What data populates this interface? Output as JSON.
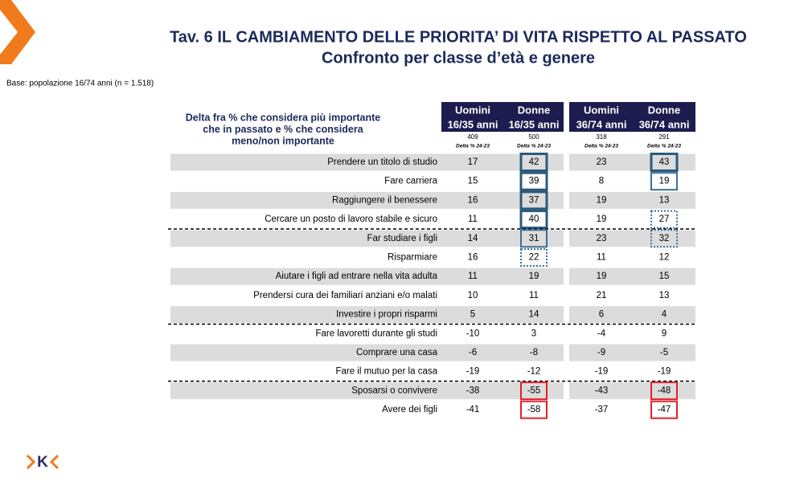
{
  "header": {
    "title": "Tav. 6 IL CAMBIAMENTO DELLE PRIORITA’ DI VITA RISPETTO AL PASSATO",
    "subtitle": "Confronto per classe d’età e genere",
    "base": "Base: popolazione 16/74 anni (n = 1.518)"
  },
  "logo_text": "K",
  "table": {
    "corner_lines": [
      "Delta fra % che considera più importante",
      "che in passato  e % che considera",
      "meno/non importante"
    ],
    "columns": [
      {
        "name": "Uomini",
        "age": "16/35 anni",
        "n": "409",
        "note": "Delta % 24-23"
      },
      {
        "name": "Donne",
        "age": "16/35 anni",
        "n": "500",
        "note": "Delta % 24-23"
      },
      {
        "name": "Uomini",
        "age": "36/74 anni",
        "n": "318",
        "note": "Delta % 24-23"
      },
      {
        "name": "Donne",
        "age": "36/74 anni",
        "n": "291",
        "note": "Delta % 24-23"
      }
    ],
    "header_color": "#1c1c4f",
    "band_color": "#dcdcdc",
    "groups": [
      {
        "rows": [
          {
            "label": "Prendere un titolo di studio",
            "values": [
              17,
              42,
              23,
              43
            ],
            "boxes": [
              null,
              "3px solid #2c5a7c",
              null,
              "3px solid #2c5a7c"
            ]
          },
          {
            "label": "Fare carriera",
            "values": [
              15,
              39,
              8,
              19
            ],
            "boxes": [
              null,
              "3px solid #2c5a7c",
              null,
              "2px solid #3c6f95"
            ]
          },
          {
            "label": "Raggiungere il benessere",
            "values": [
              16,
              37,
              19,
              13
            ],
            "boxes": [
              null,
              "3px solid #2c5a7c",
              null,
              null
            ]
          },
          {
            "label": "Cercare un posto di lavoro stabile e sicuro",
            "values": [
              11,
              40,
              19,
              27
            ],
            "boxes": [
              null,
              "3px solid #2c5a7c",
              null,
              "2px dotted #3c6f95"
            ]
          }
        ]
      },
      {
        "rows": [
          {
            "label": "Far studiare i figli",
            "values": [
              14,
              31,
              23,
              32
            ],
            "boxes": [
              null,
              "2px solid #3c6f95",
              null,
              "2px dotted #3c6f95"
            ]
          },
          {
            "label": "Risparmiare",
            "values": [
              16,
              22,
              11,
              12
            ],
            "boxes": [
              null,
              "2px dotted #3c6f95",
              null,
              null
            ]
          },
          {
            "label": "Aiutare i figli ad entrare nella vita adulta",
            "values": [
              11,
              19,
              19,
              15
            ],
            "boxes": [
              null,
              null,
              null,
              null
            ]
          },
          {
            "label": "Prendersi cura dei familiari anziani e/o malati",
            "values": [
              10,
              11,
              21,
              13
            ],
            "boxes": [
              null,
              null,
              null,
              null
            ]
          },
          {
            "label": "Investire i propri risparmi",
            "values": [
              5,
              14,
              6,
              4
            ],
            "boxes": [
              null,
              null,
              null,
              null
            ]
          }
        ]
      },
      {
        "rows": [
          {
            "label": "Fare lavoretti durante gli studi",
            "values": [
              -10,
              3,
              -4,
              9
            ],
            "boxes": [
              null,
              null,
              null,
              null
            ]
          },
          {
            "label": "Comprare una casa",
            "values": [
              -6,
              -8,
              -9,
              -5
            ],
            "boxes": [
              null,
              null,
              null,
              null
            ]
          },
          {
            "label": "Fare il mutuo per la casa",
            "values": [
              -19,
              -12,
              -19,
              -19
            ],
            "boxes": [
              null,
              null,
              null,
              null
            ]
          }
        ]
      },
      {
        "rows": [
          {
            "label": "Sposarsi o convivere",
            "values": [
              -38,
              -55,
              -43,
              -48
            ],
            "boxes": [
              null,
              "2px solid #e0202a",
              null,
              "2px solid #e0202a"
            ]
          },
          {
            "label": "Avere dei figli",
            "values": [
              -41,
              -58,
              -37,
              -47
            ],
            "boxes": [
              null,
              "2px solid #e0202a",
              null,
              "2px solid #e0202a"
            ]
          }
        ]
      }
    ]
  }
}
